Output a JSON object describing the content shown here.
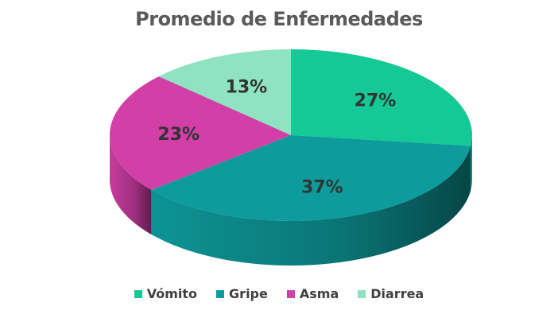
{
  "chart_data": {
    "type": "pie",
    "title": "Promedio de Enfermedades",
    "three_d": true,
    "legend_position": "bottom",
    "data_label_format": "percent",
    "slices": [
      {
        "label": "Vómito",
        "value": 27,
        "display": "27%",
        "color": "#14c995"
      },
      {
        "label": "Gripe",
        "value": 37,
        "display": "37%",
        "color": "#0e9b9c"
      },
      {
        "label": "Asma",
        "value": 23,
        "display": "23%",
        "color": "#d13fa7"
      },
      {
        "label": "Diarrea",
        "value": 13,
        "display": "13%",
        "color": "#8fe3c2"
      }
    ]
  }
}
